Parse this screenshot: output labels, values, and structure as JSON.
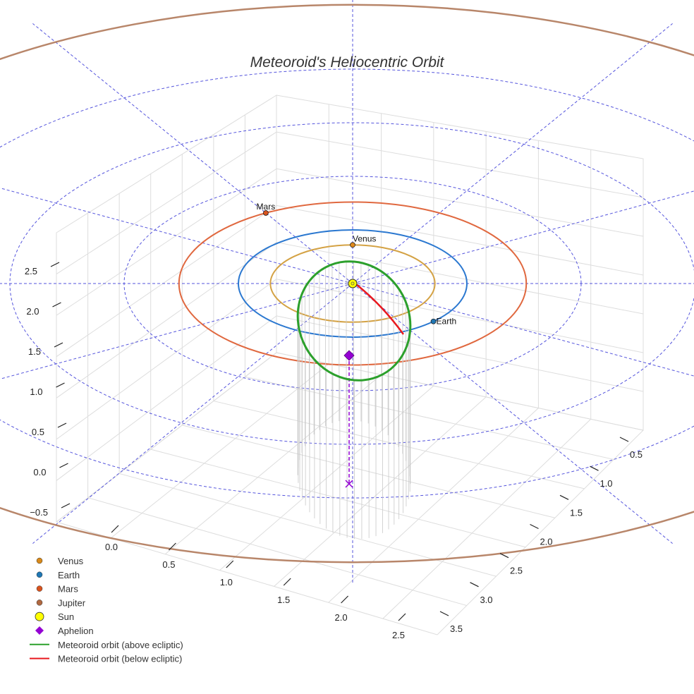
{
  "chart_data": {
    "type": "scatter3d",
    "title": "Meteoroid's Heliocentric Orbit",
    "axes": {
      "x": {
        "ticks": [
          "0.0",
          "0.5",
          "1.0",
          "1.5",
          "2.0",
          "2.5"
        ]
      },
      "y": {
        "ticks": [
          "0.5",
          "1.0",
          "1.5",
          "2.0",
          "2.5",
          "3.0",
          "3.5"
        ]
      },
      "z": {
        "ticks": [
          "−0.5",
          "0.0",
          "0.5",
          "1.0",
          "1.5",
          "2.0",
          "2.5"
        ]
      }
    },
    "orbits_au": [
      {
        "name": "Venus orbit",
        "radius": 0.72,
        "color": "#d4a244"
      },
      {
        "name": "Earth orbit",
        "radius": 1.0,
        "color": "#2b78d0"
      },
      {
        "name": "Mars orbit",
        "radius": 1.52,
        "color": "#e0683f"
      },
      {
        "name": "Jupiter orbit",
        "radius": 5.2,
        "color": "#b8866a"
      }
    ],
    "planets": [
      {
        "name": "Venus",
        "label": "Venus",
        "color": "#e08a1c",
        "orbit_radius": 0.72,
        "angle_deg": 90
      },
      {
        "name": "Earth",
        "label": "Earth",
        "color": "#1f77b4",
        "orbit_radius": 1.0,
        "angle_deg": -45
      },
      {
        "name": "Mars",
        "label": "Mars",
        "color": "#d9531e",
        "orbit_radius": 1.52,
        "angle_deg": 120
      }
    ],
    "sun": {
      "name": "Sun",
      "color": "#ffff00"
    },
    "aphelion": {
      "name": "Aphelion",
      "color": "#9400d3"
    },
    "meteoroid_orbit": {
      "above_color": "#2ca02c",
      "below_color": "#e8191f"
    },
    "reference_grid_au": {
      "rings": [
        2.0,
        3.0,
        4.0
      ],
      "radial_lines_deg": [
        0,
        30,
        60,
        90,
        120,
        150,
        180,
        210,
        240,
        270,
        300,
        330
      ],
      "color": "#5555dd"
    },
    "legend": {
      "position": "bottom-left",
      "items": [
        {
          "label": "Venus",
          "kind": "dot",
          "color": "#d98a1a"
        },
        {
          "label": "Earth",
          "kind": "dot",
          "color": "#1f77b4"
        },
        {
          "label": "Mars",
          "kind": "dot",
          "color": "#d9531e"
        },
        {
          "label": "Jupiter",
          "kind": "dot",
          "color": "#b06840"
        },
        {
          "label": "Sun",
          "kind": "sun",
          "color": "#ffff00"
        },
        {
          "label": "Aphelion",
          "kind": "diamond",
          "color": "#9400d3"
        },
        {
          "label": "Meteoroid orbit (above ecliptic)",
          "kind": "line",
          "color": "#2ca02c"
        },
        {
          "label": "Meteoroid orbit (below ecliptic)",
          "kind": "line",
          "color": "#e8191f"
        }
      ]
    }
  }
}
